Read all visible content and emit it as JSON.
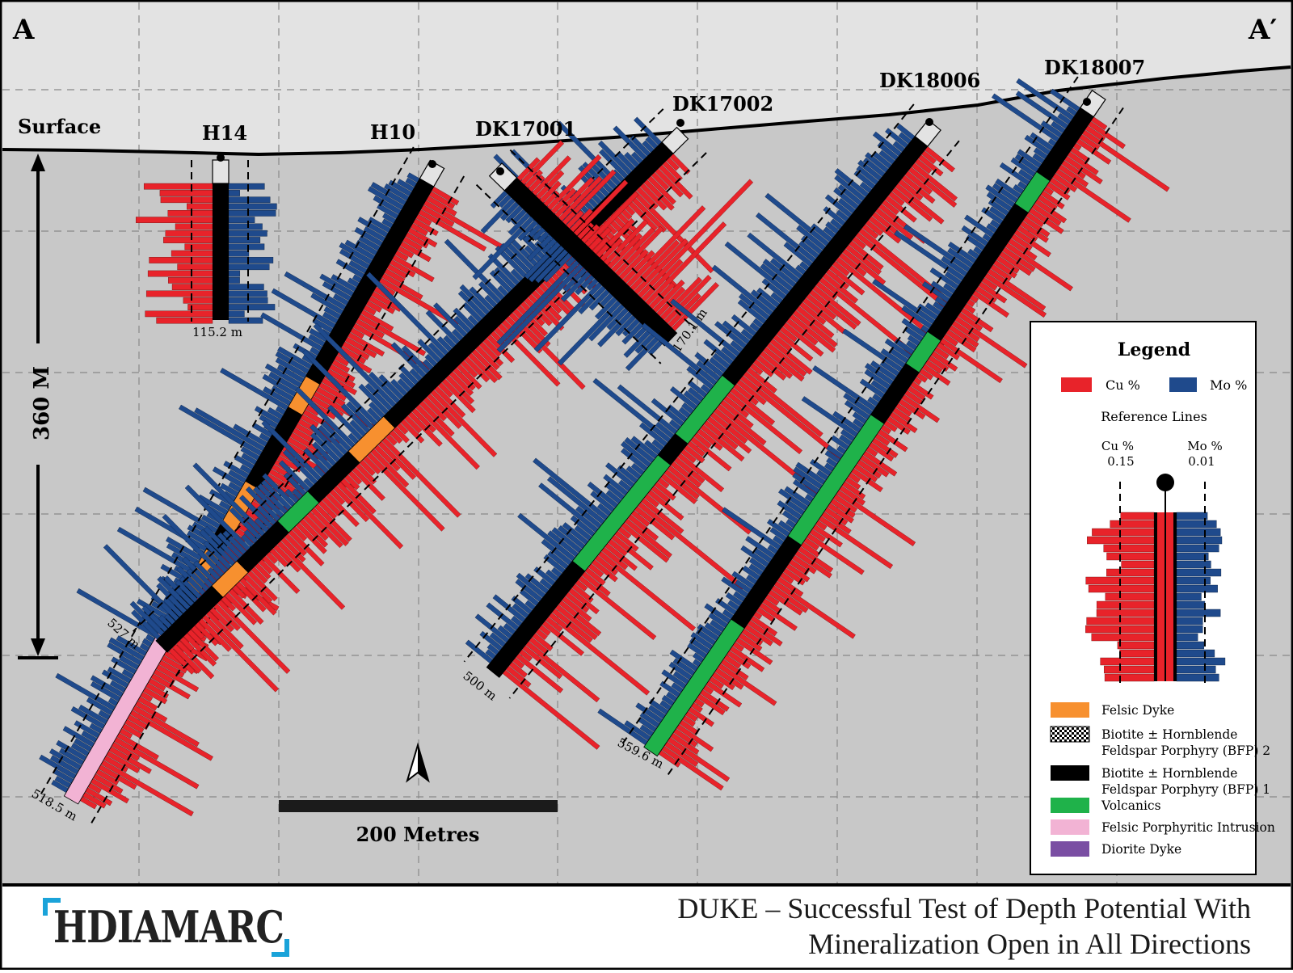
{
  "section": {
    "left_label": "A",
    "right_label": "A′",
    "surface_label": "Surface",
    "vertical_scale_label": "360 M",
    "scale_bar_label": "200 Metres"
  },
  "holes": [
    {
      "name": "H14",
      "depth_label": "115.2 m"
    },
    {
      "name": "DK17001",
      "depth_label": "527 m"
    },
    {
      "name": "H10",
      "depth_label": "518.5 m"
    },
    {
      "name": "DK17002",
      "depth_label": "170.1 m"
    },
    {
      "name": "DK18006",
      "depth_label": "500 m"
    },
    {
      "name": "DK18007",
      "depth_label": "559.6 m"
    }
  ],
  "legend": {
    "title": "Legend",
    "cu_label": "Cu %",
    "mo_label": "Mo %",
    "reference_title": "Reference Lines",
    "ref_cu_label": "Cu %",
    "ref_cu_value": "0.15",
    "ref_mo_label": "Mo %",
    "ref_mo_value": "0.01",
    "items": [
      {
        "label": "Felsic Dyke",
        "color": "#f7902f"
      },
      {
        "label": "Biotite ± Hornblende\nFeldspar Porphyry (BFP) 2",
        "color": "pattern"
      },
      {
        "label": "Biotite ± Hornblende\nFeldspar Porphyry (BFP) 1",
        "color": "#000000"
      },
      {
        "label": "Volcanics",
        "color": "#1fb24a"
      },
      {
        "label": "Felsic Porphyritic Intrusion",
        "color": "#f2b3d4"
      },
      {
        "label": "Diorite Dyke",
        "color": "#7a4ea3"
      }
    ]
  },
  "footer": {
    "logo_text": "HDIAMARC",
    "title_line1": "DUKE – Successful Test of Depth Potential With",
    "title_line2": "Mineralization Open in All Directions"
  },
  "colors": {
    "cu": "#e8232a",
    "mo": "#1f4a8c",
    "background": "#c8c8c8",
    "sky": "#e3e3e3",
    "logo_accent": "#1aa3d9"
  }
}
